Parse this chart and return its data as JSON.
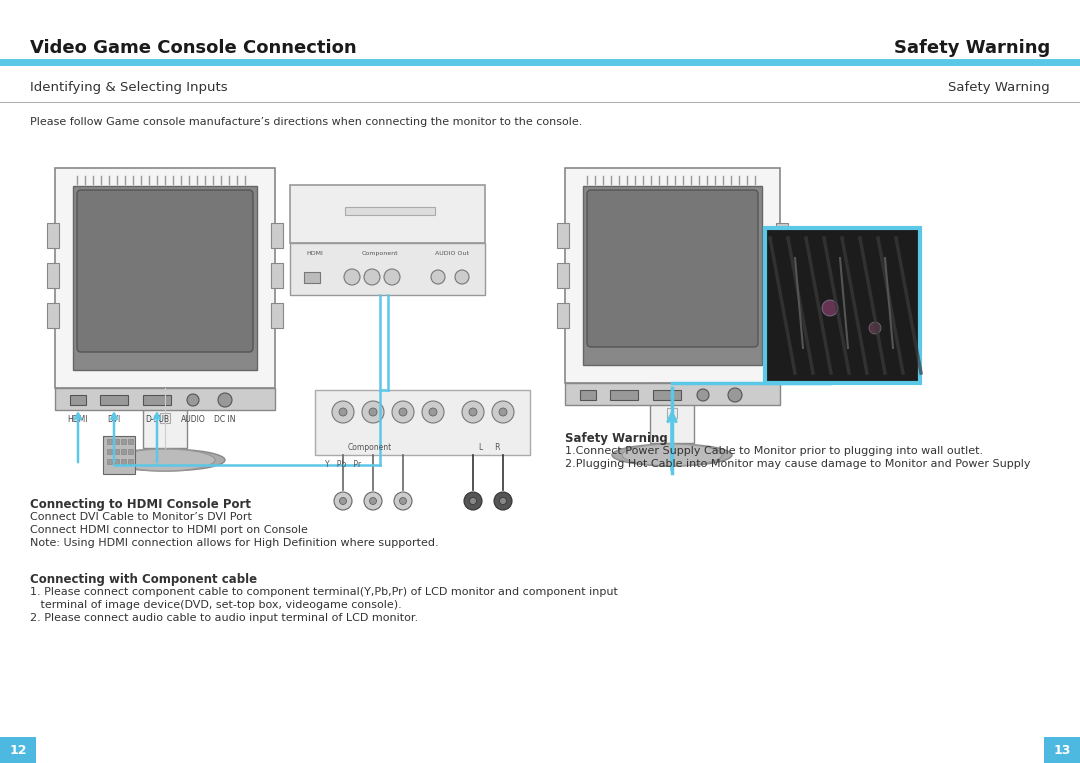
{
  "title_left": "Video Game Console Connection",
  "title_right": "Safety Warning",
  "subtitle_left": "Identifying & Selecting Inputs",
  "subtitle_right": "Safety Warning",
  "page_num_left": "12",
  "page_num_right": "13",
  "intro_text": "Please follow Game console manufacture’s directions when connecting the monitor to the console.",
  "hdmi_heading": "Connecting to HDMI Console Port",
  "hdmi_lines": [
    "Connect DVI Cable to Monitor’s DVI Port",
    "Connect HDMI connector to HDMI port on Console",
    "Note: Using HDMI connection allows for High Definition where supported."
  ],
  "component_heading": "Connecting with Component cable",
  "component_lines": [
    "1. Please connect component cable to component terminal(Y,Pb,Pr) of LCD monitor and component input",
    "   terminal of image device(DVD, set-top box, videogame console).",
    "2. Please connect audio cable to audio input terminal of LCD monitor."
  ],
  "safety_heading": "Safety Warning",
  "safety_lines": [
    "1.Connect Power Supply Cable to Monitor prior to plugging into wall outlet.",
    "2.Plugging Hot Cable into Monitor may cause damage to Monitor and Power Supply"
  ],
  "header_line_color": "#5bc8e8",
  "subtitle_line_color": "#aaaaaa",
  "bg_color": "#ffffff",
  "title_color": "#1a1a1a",
  "text_color": "#333333",
  "page_bg_color": "#4db8e0",
  "page_text_color": "#ffffff",
  "mon_outer_color": "#dddddd",
  "mon_inner_color": "#888888",
  "mon_back_color": "#777777",
  "cable_color": "#5bc8e8"
}
